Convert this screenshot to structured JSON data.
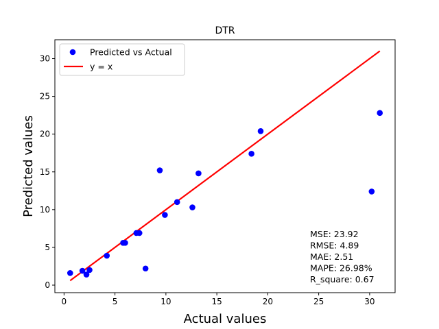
{
  "chart_data": {
    "type": "scatter",
    "title": "DTR",
    "xlabel": "Actual values",
    "ylabel": "Predicted values",
    "xlim": [
      -0.9,
      32.5
    ],
    "ylim": [
      -1.0,
      32.5
    ],
    "xticks": [
      0,
      5,
      10,
      15,
      20,
      25,
      30
    ],
    "yticks": [
      0,
      5,
      10,
      15,
      20,
      25,
      30
    ],
    "grid": false,
    "legend_position": "top-left",
    "series": [
      {
        "name": "Predicted vs Actual",
        "kind": "scatter",
        "color": "#0000ff",
        "points": [
          {
            "x": 0.6,
            "y": 1.6
          },
          {
            "x": 1.8,
            "y": 1.9
          },
          {
            "x": 2.2,
            "y": 1.4
          },
          {
            "x": 2.5,
            "y": 2.0
          },
          {
            "x": 4.2,
            "y": 3.9
          },
          {
            "x": 5.8,
            "y": 5.6
          },
          {
            "x": 6.0,
            "y": 5.6
          },
          {
            "x": 7.1,
            "y": 6.9
          },
          {
            "x": 7.4,
            "y": 6.9
          },
          {
            "x": 8.0,
            "y": 2.2
          },
          {
            "x": 9.4,
            "y": 15.2
          },
          {
            "x": 9.9,
            "y": 9.3
          },
          {
            "x": 11.1,
            "y": 11.0
          },
          {
            "x": 12.6,
            "y": 10.3
          },
          {
            "x": 13.2,
            "y": 14.8
          },
          {
            "x": 18.4,
            "y": 17.4
          },
          {
            "x": 19.3,
            "y": 20.4
          },
          {
            "x": 30.2,
            "y": 12.4
          },
          {
            "x": 31.0,
            "y": 22.8
          }
        ]
      },
      {
        "name": "y = x",
        "kind": "line",
        "color": "#ff0000",
        "points": [
          {
            "x": 0.6,
            "y": 0.6
          },
          {
            "x": 31.0,
            "y": 31.0
          }
        ]
      }
    ],
    "annotations": [
      "MSE: 23.92",
      "RMSE: 4.89",
      "MAE: 2.51",
      "MAPE: 26.98%",
      "R_square: 0.67"
    ]
  }
}
